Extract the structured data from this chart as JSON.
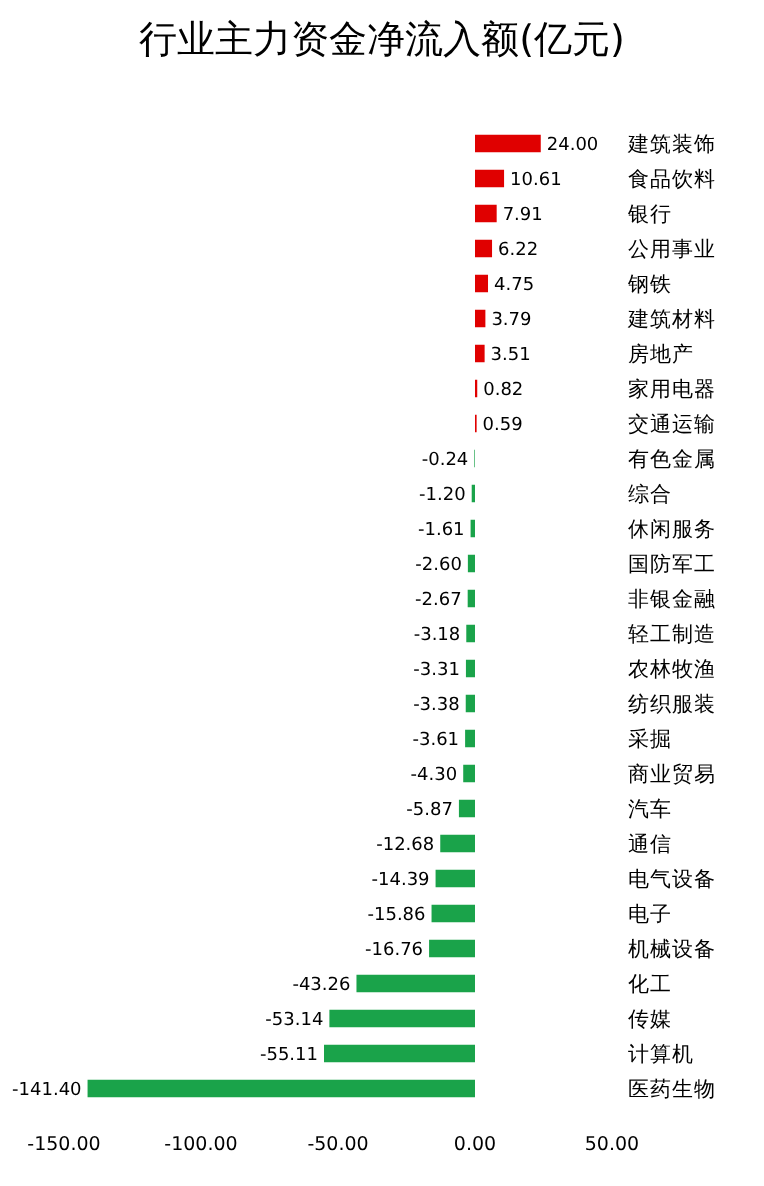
{
  "chart_data": {
    "type": "bar",
    "orientation": "horizontal",
    "title": "行业主力资金净流入额(亿元)",
    "categories": [
      "建筑装饰",
      "食品饮料",
      "银行",
      "公用事业",
      "钢铁",
      "建筑材料",
      "房地产",
      "家用电器",
      "交通运输",
      "有色金属",
      "综合",
      "休闲服务",
      "国防军工",
      "非银金融",
      "轻工制造",
      "农林牧渔",
      "纺织服装",
      "采掘",
      "商业贸易",
      "汽车",
      "通信",
      "电气设备",
      "电子",
      "机械设备",
      "化工",
      "传媒",
      "计算机",
      "医药生物"
    ],
    "values": [
      24.0,
      10.61,
      7.91,
      6.22,
      4.75,
      3.79,
      3.51,
      0.82,
      0.59,
      -0.24,
      -1.2,
      -1.61,
      -2.6,
      -2.67,
      -3.18,
      -3.31,
      -3.38,
      -3.61,
      -4.3,
      -5.87,
      -12.68,
      -14.39,
      -15.86,
      -16.76,
      -43.26,
      -53.14,
      -55.11,
      -141.4
    ],
    "value_labels": [
      "24.00",
      "10.61",
      "7.91",
      "6.22",
      "4.75",
      "3.79",
      "3.51",
      "0.82",
      "0.59",
      "-0.24",
      "-1.20",
      "-1.61",
      "-2.60",
      "-2.67",
      "-3.18",
      "-3.31",
      "-3.38",
      "-3.61",
      "-4.30",
      "-5.87",
      "-12.68",
      "-14.39",
      "-15.86",
      "-16.76",
      "-43.26",
      "-53.14",
      "-55.11",
      "-141.40"
    ],
    "colors": [
      "#e00000",
      "#e00000",
      "#e00000",
      "#e00000",
      "#e00000",
      "#e00000",
      "#e00000",
      "#e00000",
      "#e00000",
      "#1aa34a",
      "#1aa34a",
      "#1aa34a",
      "#1aa34a",
      "#1aa34a",
      "#1aa34a",
      "#1aa34a",
      "#1aa34a",
      "#1aa34a",
      "#1aa34a",
      "#1aa34a",
      "#1aa34a",
      "#1aa34a",
      "#1aa34a",
      "#1aa34a",
      "#1aa34a",
      "#1aa34a",
      "#1aa34a",
      "#1aa34a"
    ],
    "xlim": [
      -150,
      50
    ],
    "xticks": [
      {
        "value": -150,
        "label": "-150.00"
      },
      {
        "value": -100,
        "label": "-100.00"
      },
      {
        "value": -50,
        "label": "-50.00"
      },
      {
        "value": 0,
        "label": "0.00"
      },
      {
        "value": 50,
        "label": "50.00"
      }
    ],
    "grid": false
  }
}
